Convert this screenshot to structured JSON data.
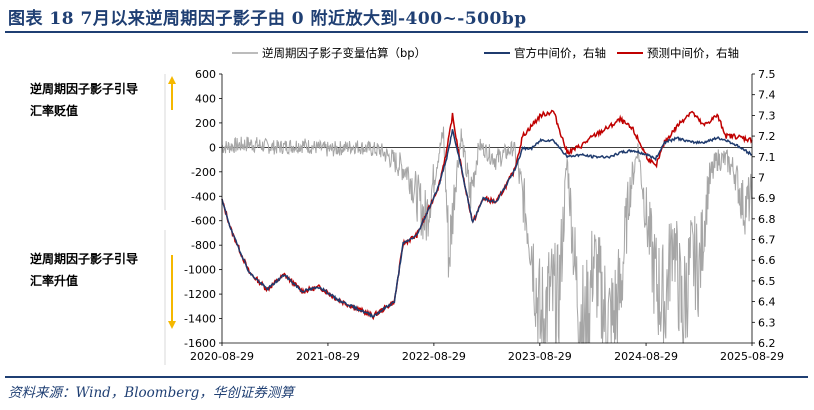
{
  "header": {
    "title": "图表 18   7月以来逆周期因子影子由 0 附近放大到-400~-500bp"
  },
  "footer": {
    "source": "资料来源：Wind，Bloomberg，华创证券测算"
  },
  "colors": {
    "title": "#1f3f73",
    "shadow_factor": "#a6a6a6",
    "official_mid": "#1f3b6e",
    "predicted_mid": "#c00000",
    "arrow": "#f5b800"
  },
  "chart_data": {
    "type": "line",
    "x_ticks": [
      "2020-08-29",
      "2021-08-29",
      "2022-08-29",
      "2023-08-29",
      "2024-08-29",
      "2025-08-29"
    ],
    "y_left": {
      "ticks": [
        600,
        400,
        200,
        0,
        -200,
        -400,
        -600,
        -800,
        -1000,
        -1200,
        -1400,
        -1600
      ],
      "ylim": [
        -1600,
        600
      ]
    },
    "y_right": {
      "ticks": [
        7.5,
        7.4,
        7.3,
        7.2,
        7.1,
        7,
        6.9,
        6.8,
        6.7,
        6.6,
        6.5,
        6.4,
        6.3,
        6.2
      ],
      "ylim": [
        6.2,
        7.5
      ]
    },
    "annotations": {
      "top": [
        "逆周期因子影子引导",
        "汇率贬值"
      ],
      "bottom": [
        "逆周期因子影子引导",
        "汇率升值"
      ]
    },
    "series": [
      {
        "name": "逆周期因子影子变量估算（bp）",
        "axis": "left",
        "x": [
          "2020-08-29",
          "2020-12-01",
          "2021-03-01",
          "2021-06-01",
          "2021-09-01",
          "2021-12-01",
          "2022-03-01",
          "2022-06-01",
          "2022-08-01",
          "2022-09-10",
          "2022-10-01",
          "2022-10-20",
          "2022-11-10",
          "2022-12-01",
          "2023-01-01",
          "2023-02-01",
          "2023-04-01",
          "2023-06-01",
          "2023-07-01",
          "2023-08-01",
          "2023-09-01",
          "2023-10-01",
          "2023-11-01",
          "2023-12-01",
          "2024-01-01",
          "2024-02-01",
          "2024-03-01",
          "2024-04-01",
          "2024-05-01",
          "2024-06-01",
          "2024-07-01",
          "2024-08-01",
          "2024-09-01",
          "2024-10-01",
          "2024-11-01",
          "2024-12-01",
          "2025-01-01",
          "2025-02-01",
          "2025-03-01",
          "2025-04-01",
          "2025-05-01",
          "2025-06-01",
          "2025-07-01",
          "2025-08-01",
          "2025-08-29"
        ],
        "values": [
          0,
          30,
          0,
          20,
          -20,
          10,
          -30,
          -200,
          -600,
          -100,
          120,
          -900,
          -300,
          100,
          -400,
          20,
          -100,
          0,
          -400,
          -800,
          -1500,
          -1200,
          -1300,
          -100,
          -1100,
          -1600,
          -900,
          -1300,
          -1500,
          -1200,
          -400,
          0,
          -600,
          -1100,
          -1300,
          -700,
          -1400,
          -900,
          -1000,
          -300,
          -100,
          -100,
          -200,
          -500,
          -400
        ]
      },
      {
        "name": "官方中间价，右轴",
        "axis": "right",
        "x": [
          "2020-08-29",
          "2020-10-01",
          "2020-12-01",
          "2021-02-01",
          "2021-04-01",
          "2021-06-01",
          "2021-08-01",
          "2021-10-01",
          "2021-12-01",
          "2022-02-01",
          "2022-04-15",
          "2022-05-15",
          "2022-07-01",
          "2022-08-15",
          "2022-09-15",
          "2022-10-15",
          "2022-11-01",
          "2022-12-01",
          "2023-01-10",
          "2023-02-15",
          "2023-04-01",
          "2023-06-01",
          "2023-07-01",
          "2023-08-01",
          "2023-09-01",
          "2023-10-15",
          "2023-12-01",
          "2024-01-15",
          "2024-03-01",
          "2024-05-01",
          "2024-06-01",
          "2024-07-15",
          "2024-09-01",
          "2024-10-01",
          "2024-11-01",
          "2024-12-15",
          "2025-02-01",
          "2025-03-15",
          "2025-05-01",
          "2025-06-01",
          "2025-07-01",
          "2025-08-29"
        ],
        "values": [
          6.89,
          6.74,
          6.54,
          6.46,
          6.53,
          6.45,
          6.47,
          6.41,
          6.37,
          6.33,
          6.4,
          6.68,
          6.72,
          6.86,
          6.96,
          7.11,
          7.23,
          7.05,
          6.78,
          6.9,
          6.88,
          7.03,
          7.14,
          7.14,
          7.18,
          7.18,
          7.1,
          7.11,
          7.1,
          7.1,
          7.12,
          7.13,
          7.11,
          7.09,
          7.17,
          7.19,
          7.17,
          7.17,
          7.19,
          7.18,
          7.16,
          7.11
        ]
      },
      {
        "name": "预测中间价，右轴",
        "axis": "right",
        "x": [
          "2020-08-29",
          "2020-10-01",
          "2020-12-01",
          "2021-02-01",
          "2021-04-01",
          "2021-06-01",
          "2021-08-01",
          "2021-10-01",
          "2021-12-01",
          "2022-02-01",
          "2022-04-15",
          "2022-05-15",
          "2022-07-01",
          "2022-08-15",
          "2022-09-15",
          "2022-10-15",
          "2022-11-01",
          "2022-12-01",
          "2023-01-10",
          "2023-02-15",
          "2023-04-01",
          "2023-06-01",
          "2023-07-01",
          "2023-08-01",
          "2023-09-01",
          "2023-10-15",
          "2023-12-01",
          "2024-01-15",
          "2024-03-01",
          "2024-05-01",
          "2024-06-01",
          "2024-07-15",
          "2024-09-01",
          "2024-10-01",
          "2024-11-01",
          "2024-12-15",
          "2025-02-01",
          "2025-03-15",
          "2025-05-01",
          "2025-06-01",
          "2025-07-01",
          "2025-08-29"
        ],
        "values": [
          6.89,
          6.74,
          6.54,
          6.46,
          6.53,
          6.45,
          6.47,
          6.41,
          6.37,
          6.33,
          6.4,
          6.68,
          6.72,
          6.86,
          6.96,
          7.15,
          7.3,
          7.05,
          6.78,
          6.9,
          6.88,
          7.03,
          7.2,
          7.25,
          7.3,
          7.32,
          7.12,
          7.15,
          7.2,
          7.25,
          7.28,
          7.23,
          7.1,
          7.05,
          7.17,
          7.25,
          7.32,
          7.25,
          7.3,
          7.2,
          7.2,
          7.18
        ]
      }
    ]
  }
}
